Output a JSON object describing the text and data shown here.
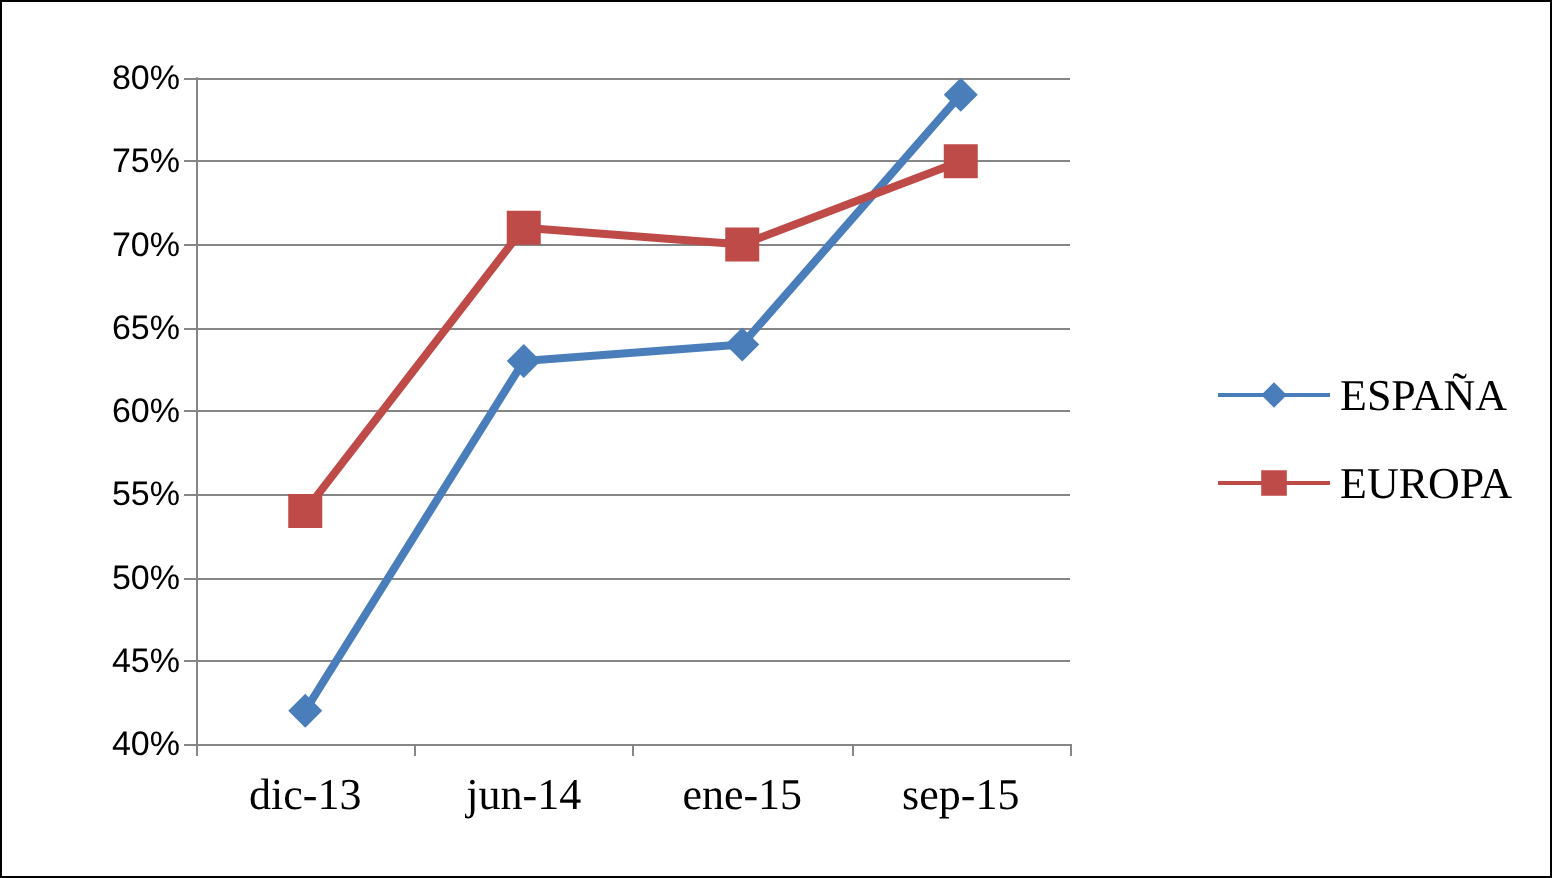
{
  "chart_data": {
    "type": "line",
    "categories": [
      "dic-13",
      "jun-14",
      "ene-15",
      "sep-15"
    ],
    "series": [
      {
        "name": "ESPAÑA",
        "color": "#4a7ebb",
        "marker": "diamond",
        "values": [
          42,
          63,
          64,
          79
        ]
      },
      {
        "name": "EUROPA",
        "color": "#be4b48",
        "marker": "square",
        "values": [
          54,
          71,
          70,
          75
        ]
      }
    ],
    "ylim": [
      40,
      80
    ],
    "yticks": [
      {
        "value": 40,
        "label": "40%"
      },
      {
        "value": 45,
        "label": "45%"
      },
      {
        "value": 50,
        "label": "50%"
      },
      {
        "value": 55,
        "label": "55%"
      },
      {
        "value": 60,
        "label": "60%"
      },
      {
        "value": 65,
        "label": "65%"
      },
      {
        "value": 70,
        "label": "70%"
      },
      {
        "value": 75,
        "label": "75%"
      },
      {
        "value": 80,
        "label": "80%"
      }
    ],
    "grid": "y",
    "legend": "right",
    "line_style": "solid"
  }
}
